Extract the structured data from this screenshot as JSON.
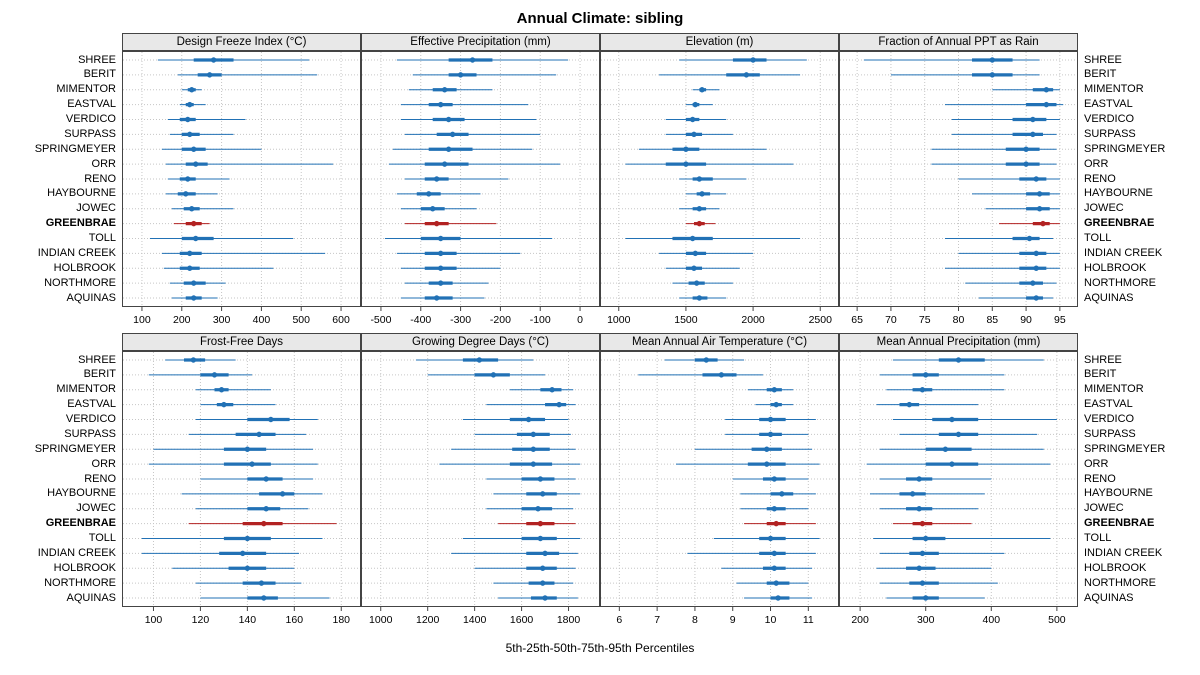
{
  "title": "Annual Climate: sibling",
  "caption": "5th-25th-50th-75th-95th Percentiles",
  "sites": [
    "SHREE",
    "BERIT",
    "MIMENTOR",
    "EASTVAL",
    "VERDICO",
    "SURPASS",
    "SPRINGMEYER",
    "ORR",
    "RENO",
    "HAYBOURNE",
    "JOWEC",
    "GREENBRAE",
    "TOLL",
    "INDIAN CREEK",
    "HOLBROOK",
    "NORTHMORE",
    "AQUINAS"
  ],
  "highlight_site": "GREENBRAE",
  "colors": {
    "series": "#2171b5",
    "highlight": "#b22222",
    "grid": "#c6c6c6",
    "panel_border": "#444444",
    "header_bg": "#e8e8e8"
  },
  "chart_data": {
    "type": "scatter",
    "subtype": "percentile-dotplot",
    "percentiles": [
      5,
      25,
      50,
      75,
      95
    ],
    "layout": {
      "rows": 2,
      "cols": 4,
      "grid": "dotted",
      "legend_position": "none"
    },
    "panels": [
      {
        "title": "Design Freeze Index (°C)",
        "ticks": [
          100,
          200,
          300,
          400,
          500,
          600
        ],
        "xlim": [
          70,
          630
        ],
        "values": [
          [
            140,
            230,
            280,
            330,
            520
          ],
          [
            190,
            240,
            270,
            300,
            540
          ],
          [
            200,
            215,
            225,
            235,
            250
          ],
          [
            195,
            210,
            220,
            230,
            260
          ],
          [
            165,
            195,
            215,
            235,
            360
          ],
          [
            170,
            200,
            220,
            245,
            330
          ],
          [
            150,
            200,
            230,
            260,
            400
          ],
          [
            160,
            210,
            235,
            265,
            580
          ],
          [
            165,
            195,
            215,
            235,
            320
          ],
          [
            160,
            190,
            210,
            235,
            290
          ],
          [
            175,
            205,
            225,
            245,
            330
          ],
          [
            180,
            210,
            230,
            250,
            270
          ],
          [
            120,
            200,
            235,
            280,
            480
          ],
          [
            150,
            195,
            220,
            250,
            560
          ],
          [
            155,
            195,
            220,
            245,
            430
          ],
          [
            170,
            205,
            230,
            260,
            310
          ],
          [
            175,
            210,
            230,
            250,
            290
          ]
        ]
      },
      {
        "title": "Effective Precipitation (mm)",
        "ticks": [
          -500,
          -400,
          -300,
          -200,
          -100,
          0
        ],
        "xlim": [
          -530,
          30
        ],
        "values": [
          [
            -460,
            -330,
            -270,
            -220,
            -30
          ],
          [
            -420,
            -330,
            -300,
            -260,
            -60
          ],
          [
            -430,
            -370,
            -340,
            -310,
            -220
          ],
          [
            -450,
            -380,
            -350,
            -320,
            -130
          ],
          [
            -450,
            -370,
            -330,
            -290,
            -110
          ],
          [
            -440,
            -360,
            -320,
            -280,
            -100
          ],
          [
            -470,
            -380,
            -330,
            -270,
            -120
          ],
          [
            -480,
            -390,
            -340,
            -280,
            -50
          ],
          [
            -440,
            -390,
            -360,
            -330,
            -180
          ],
          [
            -460,
            -410,
            -380,
            -350,
            -250
          ],
          [
            -450,
            -400,
            -370,
            -340,
            -260
          ],
          [
            -440,
            -390,
            -360,
            -330,
            -210
          ],
          [
            -490,
            -400,
            -350,
            -300,
            -70
          ],
          [
            -460,
            -390,
            -350,
            -310,
            -150
          ],
          [
            -450,
            -390,
            -350,
            -310,
            -200
          ],
          [
            -440,
            -380,
            -350,
            -320,
            -230
          ],
          [
            -450,
            -390,
            -360,
            -320,
            -240
          ]
        ]
      },
      {
        "title": "Elevation (m)",
        "ticks": [
          1000,
          1500,
          2000,
          2500
        ],
        "xlim": [
          920,
          2580
        ],
        "values": [
          [
            1450,
            1850,
            2000,
            2100,
            2400
          ],
          [
            1300,
            1800,
            1950,
            2050,
            2350
          ],
          [
            1550,
            1600,
            1620,
            1650,
            1750
          ],
          [
            1500,
            1550,
            1570,
            1600,
            1700
          ],
          [
            1350,
            1500,
            1550,
            1600,
            1800
          ],
          [
            1350,
            1500,
            1560,
            1620,
            1850
          ],
          [
            1150,
            1400,
            1500,
            1600,
            2100
          ],
          [
            1050,
            1350,
            1500,
            1650,
            2300
          ],
          [
            1450,
            1550,
            1600,
            1700,
            1950
          ],
          [
            1500,
            1580,
            1620,
            1680,
            1800
          ],
          [
            1450,
            1550,
            1600,
            1650,
            1750
          ],
          [
            1500,
            1560,
            1600,
            1640,
            1720
          ],
          [
            1050,
            1400,
            1550,
            1700,
            2350
          ],
          [
            1300,
            1500,
            1570,
            1650,
            2000
          ],
          [
            1350,
            1500,
            1560,
            1620,
            1900
          ],
          [
            1400,
            1520,
            1580,
            1640,
            1850
          ],
          [
            1450,
            1550,
            1600,
            1660,
            1800
          ]
        ]
      },
      {
        "title": "Fraction of Annual PPT as Rain",
        "ticks": [
          65,
          70,
          75,
          80,
          85,
          90,
          95
        ],
        "xlim": [
          63.5,
          96.5
        ],
        "values": [
          [
            66,
            82,
            85,
            88,
            92
          ],
          [
            70,
            82,
            85,
            88,
            92
          ],
          [
            85,
            91,
            93,
            94,
            95
          ],
          [
            78,
            90,
            93,
            94.5,
            95.5
          ],
          [
            79,
            88,
            91,
            93,
            95
          ],
          [
            79,
            88,
            91,
            92.5,
            94.5
          ],
          [
            76,
            87,
            90,
            92,
            94.5
          ],
          [
            76,
            87,
            90,
            92,
            94.5
          ],
          [
            80,
            89,
            91.5,
            93,
            95
          ],
          [
            82,
            90,
            92,
            93.5,
            95
          ],
          [
            84,
            90,
            92,
            93.5,
            95
          ],
          [
            86,
            91,
            92.5,
            93.5,
            95
          ],
          [
            78,
            88,
            90.5,
            92,
            94
          ],
          [
            80,
            89,
            91.5,
            93,
            95
          ],
          [
            78,
            89,
            91.5,
            93,
            95
          ],
          [
            81,
            89,
            91,
            92.5,
            94.5
          ],
          [
            83,
            90,
            91.5,
            92.5,
            94
          ]
        ]
      },
      {
        "title": "Frost-Free Days",
        "ticks": [
          100,
          120,
          140,
          160,
          180
        ],
        "xlim": [
          90,
          185
        ],
        "values": [
          [
            105,
            113,
            117,
            122,
            135
          ],
          [
            98,
            120,
            126,
            132,
            142
          ],
          [
            118,
            126,
            129,
            132,
            150
          ],
          [
            120,
            127,
            130,
            134,
            152
          ],
          [
            118,
            140,
            150,
            158,
            170
          ],
          [
            115,
            135,
            145,
            152,
            165
          ],
          [
            100,
            130,
            140,
            148,
            168
          ],
          [
            98,
            130,
            142,
            150,
            170
          ],
          [
            120,
            140,
            148,
            155,
            168
          ],
          [
            112,
            145,
            155,
            160,
            172
          ],
          [
            118,
            140,
            148,
            154,
            166
          ],
          [
            115,
            138,
            147,
            155,
            178
          ],
          [
            95,
            130,
            140,
            150,
            172
          ],
          [
            95,
            128,
            138,
            148,
            162
          ],
          [
            108,
            132,
            140,
            148,
            160
          ],
          [
            118,
            138,
            146,
            152,
            163
          ],
          [
            120,
            140,
            147,
            153,
            175
          ]
        ]
      },
      {
        "title": "Growing Degree Days (°C)",
        "ticks": [
          1000,
          1200,
          1400,
          1600,
          1800
        ],
        "xlim": [
          950,
          1900
        ],
        "values": [
          [
            1150,
            1350,
            1420,
            1500,
            1650
          ],
          [
            1200,
            1400,
            1480,
            1550,
            1700
          ],
          [
            1550,
            1680,
            1730,
            1770,
            1820
          ],
          [
            1450,
            1700,
            1760,
            1790,
            1830
          ],
          [
            1350,
            1550,
            1630,
            1700,
            1800
          ],
          [
            1400,
            1580,
            1650,
            1720,
            1810
          ],
          [
            1300,
            1560,
            1650,
            1720,
            1830
          ],
          [
            1250,
            1550,
            1650,
            1730,
            1850
          ],
          [
            1450,
            1600,
            1680,
            1740,
            1830
          ],
          [
            1480,
            1620,
            1690,
            1750,
            1850
          ],
          [
            1450,
            1600,
            1670,
            1730,
            1820
          ],
          [
            1500,
            1620,
            1680,
            1740,
            1830
          ],
          [
            1350,
            1600,
            1680,
            1750,
            1850
          ],
          [
            1300,
            1620,
            1700,
            1760,
            1840
          ],
          [
            1400,
            1620,
            1690,
            1750,
            1830
          ],
          [
            1480,
            1630,
            1690,
            1740,
            1820
          ],
          [
            1500,
            1640,
            1700,
            1750,
            1840
          ]
        ]
      },
      {
        "title": "Mean Annual Air Temperature (°C)",
        "ticks": [
          6,
          7,
          8,
          9,
          10,
          11
        ],
        "xlim": [
          5.7,
          11.6
        ],
        "values": [
          [
            7.2,
            8.0,
            8.3,
            8.6,
            9.3
          ],
          [
            6.5,
            8.2,
            8.7,
            9.1,
            9.8
          ],
          [
            9.4,
            9.9,
            10.1,
            10.3,
            10.6
          ],
          [
            9.6,
            10.0,
            10.15,
            10.3,
            10.6
          ],
          [
            8.8,
            9.7,
            10.0,
            10.4,
            11.2
          ],
          [
            8.8,
            9.7,
            10.0,
            10.3,
            11.0
          ],
          [
            8.0,
            9.5,
            9.9,
            10.3,
            11.1
          ],
          [
            7.5,
            9.4,
            9.9,
            10.4,
            11.3
          ],
          [
            9.0,
            9.8,
            10.1,
            10.4,
            11.0
          ],
          [
            9.2,
            10.0,
            10.3,
            10.6,
            11.2
          ],
          [
            9.2,
            9.9,
            10.1,
            10.4,
            11.0
          ],
          [
            9.3,
            9.9,
            10.15,
            10.4,
            11.2
          ],
          [
            8.5,
            9.7,
            10.0,
            10.4,
            11.3
          ],
          [
            7.8,
            9.7,
            10.1,
            10.4,
            11.2
          ],
          [
            8.7,
            9.8,
            10.1,
            10.4,
            11.1
          ],
          [
            9.1,
            9.9,
            10.15,
            10.5,
            11.0
          ],
          [
            9.3,
            10.0,
            10.2,
            10.5,
            11.1
          ]
        ]
      },
      {
        "title": "Mean Annual Precipitation (mm)",
        "ticks": [
          200,
          300,
          400,
          500
        ],
        "xlim": [
          180,
          520
        ],
        "values": [
          [
            250,
            320,
            350,
            390,
            480
          ],
          [
            230,
            280,
            300,
            320,
            420
          ],
          [
            240,
            280,
            295,
            310,
            420
          ],
          [
            225,
            260,
            275,
            290,
            380
          ],
          [
            250,
            310,
            340,
            380,
            500
          ],
          [
            260,
            320,
            350,
            380,
            470
          ],
          [
            230,
            300,
            330,
            370,
            480
          ],
          [
            210,
            300,
            340,
            380,
            490
          ],
          [
            230,
            270,
            290,
            310,
            400
          ],
          [
            215,
            260,
            280,
            300,
            390
          ],
          [
            230,
            270,
            290,
            310,
            380
          ],
          [
            250,
            280,
            295,
            310,
            370
          ],
          [
            220,
            280,
            300,
            330,
            490
          ],
          [
            230,
            275,
            295,
            320,
            420
          ],
          [
            225,
            270,
            290,
            315,
            400
          ],
          [
            230,
            275,
            295,
            320,
            410
          ],
          [
            240,
            280,
            300,
            320,
            390
          ]
        ]
      }
    ]
  }
}
